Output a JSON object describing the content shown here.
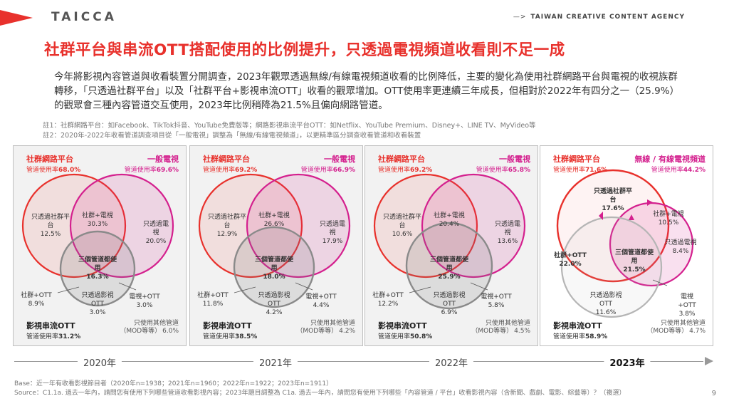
{
  "header": {
    "logo_text": "TAICCA",
    "agency_arrow": "—>",
    "agency": "TAIWAN CREATIVE CONTENT AGENCY"
  },
  "title": "社群平台與串流OTT搭配使用的比例提升，只透過電視頻道收看則不足一成",
  "lead": "今年將影視內容管道與收看裝置分開調查，2023年觀眾透過無線/有線電視頻道收看的比例降低，主要的變化為使用社群網路平台與電視的收視族群轉移，「只透過社群平台」以及「社群平台+影視串流OTT」收看的觀眾增加。OTT使用率更連續三年成長，但相對於2022年有四分之一（25.9%）的觀眾會三種內容管道交互使用，2023年比例稍降為21.5%且偏向網路管道。",
  "notes": [
    "註1：社群網路平台：如Facebook、TikTok抖音、YouTube免費版等；網路影視串流平台OTT：如Netflix、YouTube Premium、Disney+、LINE TV、MyVideo等",
    "註2：2020年-2022年收看管道調查項目從「一般電視」調整為「無線/有線電視頻道」，以更精準區分調查收看管道和收看裝置"
  ],
  "common": {
    "social_label": "社群網路平台",
    "usage_prefix": "管道使用率",
    "ott_label": "影視串流OTT",
    "other_line1": "只使用其他管道",
    "other_line2": "（MOD等等）",
    "all_three_label": "三個管道都使用"
  },
  "panels": [
    {
      "year": "2020年",
      "social_rate": "68.0%",
      "tv_label": "一般電視",
      "tv_rate": "69.6%",
      "ott_rate": "31.2%",
      "only_social_label": "只透過社群平台",
      "only_social": "12.5%",
      "social_tv_label": "社群+電視",
      "social_tv": "30.3%",
      "only_tv_label": "只透過電視",
      "only_tv": "20.0%",
      "all_three": "16.3%",
      "social_ott_label": "社群+OTT",
      "social_ott": "8.9%",
      "only_ott_label": "只透過影視OTT",
      "only_ott": "3.0%",
      "tv_ott_label": "電視+OTT",
      "tv_ott": "3.0%",
      "other": "6.0%"
    },
    {
      "year": "2021年",
      "social_rate": "69.2%",
      "tv_label": "一般電視",
      "tv_rate": "66.9%",
      "ott_rate": "38.5%",
      "only_social_label": "只透過社群平台",
      "only_social": "12.9%",
      "social_tv_label": "社群+電視",
      "social_tv": "26.6%",
      "only_tv_label": "只透過電視",
      "only_tv": "17.9%",
      "all_three": "18.0%",
      "social_ott_label": "社群+OTT",
      "social_ott": "11.8%",
      "only_ott_label": "只透過影視OTT",
      "only_ott": "4.2%",
      "tv_ott_label": "電視+OTT",
      "tv_ott": "4.4%",
      "other": "4.2%"
    },
    {
      "year": "2022年",
      "social_rate": "69.2%",
      "tv_label": "一般電視",
      "tv_rate": "65.8%",
      "ott_rate": "50.8%",
      "only_social_label": "只透過社群平台",
      "only_social": "10.6%",
      "social_tv_label": "社群+電視",
      "social_tv": "20.4%",
      "only_tv_label": "只透過電視",
      "only_tv": "13.6%",
      "all_three": "25.9%",
      "social_ott_label": "社群+OTT",
      "social_ott": "12.2%",
      "only_ott_label": "只透過影視OTT",
      "only_ott": "6.9%",
      "tv_ott_label": "電視+OTT",
      "tv_ott": "5.8%",
      "other": "4.5%"
    },
    {
      "year": "2023年",
      "social_rate": "71.6%",
      "tv_label": "無線 / 有線電視頻道",
      "tv_rate": "44.2%",
      "ott_rate": "58.9%",
      "only_social_label": "只透過社群平台",
      "only_social": "17.6%",
      "social_tv_label": "社群+電視",
      "social_tv": "10.5%",
      "only_tv_label": "只透過電視",
      "only_tv": "8.4%",
      "all_three": "21.5%",
      "social_ott_label": "社群+OTT",
      "social_ott": "22.0%",
      "only_ott_label": "只透過影視OTT",
      "only_ott": "11.6%",
      "tv_ott_label": "電視+OTT",
      "tv_ott": "3.8%",
      "other": "4.7%"
    }
  ],
  "footer": {
    "base": "Base：近一年有收看影視節目者（2020年n=1938；2021年n=1960；2022年n=1922；2023年n=1911）",
    "source": "Source：C1.1a. 過去一年內，請問您有使用下列哪些管道收看影視內容；2023年題目調整為 C1a. 過去一年內，請問您有使用下列哪些「內容管道 / 平台」收看影視內容（含新聞、戲劇、電影、綜藝等）？（複選）",
    "page": "9"
  },
  "colors": {
    "accent_red": "#e8312c",
    "accent_pink": "#d4208e",
    "ott_gray": "#8a8a8a"
  }
}
